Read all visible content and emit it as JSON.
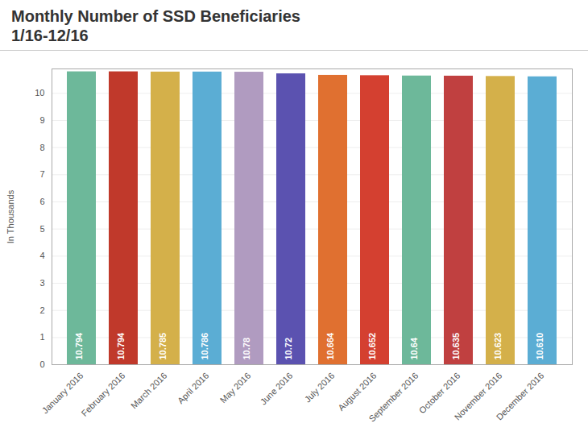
{
  "chart_data": {
    "type": "bar",
    "title": "Monthly Number of SSD Beneficiaries\n1/16-12/16",
    "ylabel": "In Thousands",
    "categories": [
      "January 2016",
      "February 2016",
      "March 2016",
      "April 2016",
      "May 2016",
      "June 2016",
      "July 2016",
      "August 2016",
      "September 2016",
      "October 2016",
      "November 2016",
      "December 2016"
    ],
    "values": [
      10.794,
      10.794,
      10.785,
      10.786,
      10.78,
      10.72,
      10.664,
      10.652,
      10.64,
      10.635,
      10.623,
      10.61
    ],
    "value_labels": [
      "10.794",
      "10.794",
      "10.785",
      "10.786",
      "10.78",
      "10.72",
      "10.664",
      "10.652",
      "10.64",
      "10.635",
      "10.623",
      "10.610"
    ],
    "colors": [
      "#6db89a",
      "#c0392b",
      "#d4b04a",
      "#5badd4",
      "#b09bc0",
      "#5b52b0",
      "#e07030",
      "#d44030",
      "#6db89a",
      "#c04040",
      "#d4b04a",
      "#5badd4"
    ],
    "ylim": [
      0,
      10.9
    ],
    "yticks": [
      0,
      1,
      2,
      3,
      4,
      5,
      6,
      7,
      8,
      9,
      10
    ],
    "grid": true,
    "data_labels": true
  }
}
